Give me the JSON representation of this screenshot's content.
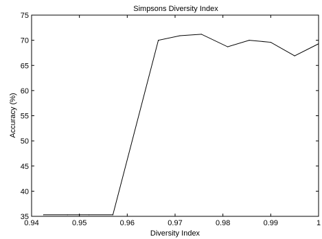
{
  "chart_data": {
    "type": "line",
    "title": "Simpsons Diversity Index",
    "xlabel": "Diversity Index",
    "ylabel": "Accuracy (%)",
    "xlim": [
      0.94,
      1.0
    ],
    "ylim": [
      35,
      75
    ],
    "xticks": [
      "0.94",
      "0.95",
      "0.96",
      "0.97",
      "0.98",
      "0.99",
      "1"
    ],
    "yticks": [
      "35",
      "40",
      "45",
      "50",
      "55",
      "60",
      "65",
      "70",
      "75"
    ],
    "grid": false,
    "line_color": "#000000",
    "series": [
      {
        "x": [
          0.9425,
          0.9475,
          0.952,
          0.957,
          0.9665,
          0.971,
          0.9755,
          0.981,
          0.9855,
          0.99,
          0.995,
          1.0
        ],
        "y": [
          35.3,
          35.3,
          35.3,
          35.3,
          70.0,
          70.9,
          71.2,
          68.7,
          70.0,
          69.6,
          66.9,
          69.3
        ]
      }
    ]
  }
}
